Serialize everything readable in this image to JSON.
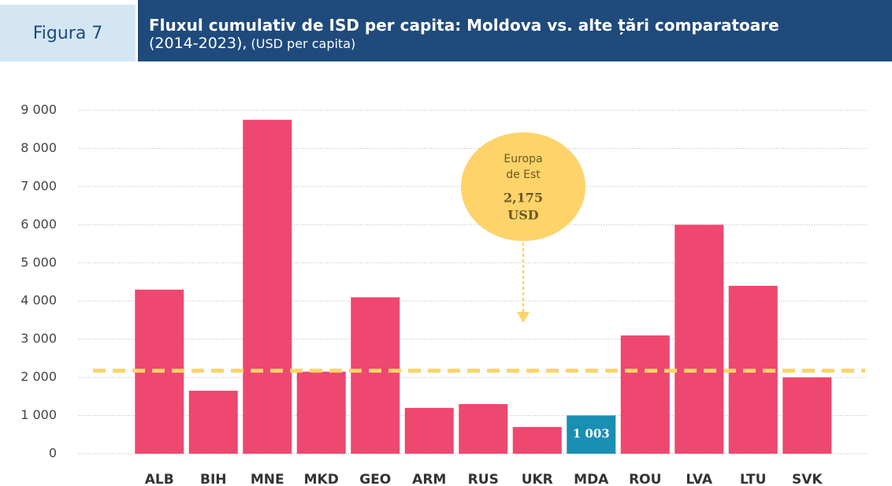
{
  "chart_data": {
    "type": "bar",
    "figure_label": "Figura 7",
    "title": "Fluxul cumulativ de ISD per capita: Moldova vs. alte țări comparatoare",
    "subtitle": "(2014-2023),",
    "unit": "(USD per capita)",
    "categories": [
      "ALB",
      "BIH",
      "MNE",
      "MKD",
      "GEO",
      "ARM",
      "RUS",
      "UKR",
      "MDA",
      "ROU",
      "LVA",
      "LTU",
      "SVK"
    ],
    "values": [
      4300,
      1650,
      8750,
      2150,
      4100,
      1200,
      1300,
      700,
      1003,
      3100,
      6000,
      4400,
      2000
    ],
    "value_labels": [
      null,
      null,
      null,
      null,
      null,
      null,
      null,
      null,
      "1 003",
      null,
      null,
      null,
      null
    ],
    "colors": [
      "#ee4770",
      "#ee4770",
      "#ee4770",
      "#ee4770",
      "#ee4770",
      "#ee4770",
      "#ee4770",
      "#ee4770",
      "#1a8fb3",
      "#ee4770",
      "#ee4770",
      "#ee4770",
      "#ee4770"
    ],
    "ylim": [
      0,
      9000
    ],
    "yticks": [
      0,
      {
        "value": 1000,
        "label": "1 000"
      },
      {
        "value": 2000,
        "label": "2 000"
      },
      {
        "value": 3000,
        "label": "3 000"
      },
      {
        "value": 4000,
        "label": "4 000"
      },
      {
        "value": 5000,
        "label": "5 000"
      },
      {
        "value": 6000,
        "label": "6 000"
      },
      {
        "value": 7000,
        "label": "7 000"
      },
      {
        "value": 8000,
        "label": "8 000"
      },
      {
        "value": 9000,
        "label": "9 000"
      }
    ],
    "grid": true,
    "reference": {
      "value": 2175,
      "color": "#fdd36a",
      "lines": [
        "Europa",
        "de Est"
      ],
      "value_label": "2,175",
      "unit_label": "USD"
    }
  }
}
